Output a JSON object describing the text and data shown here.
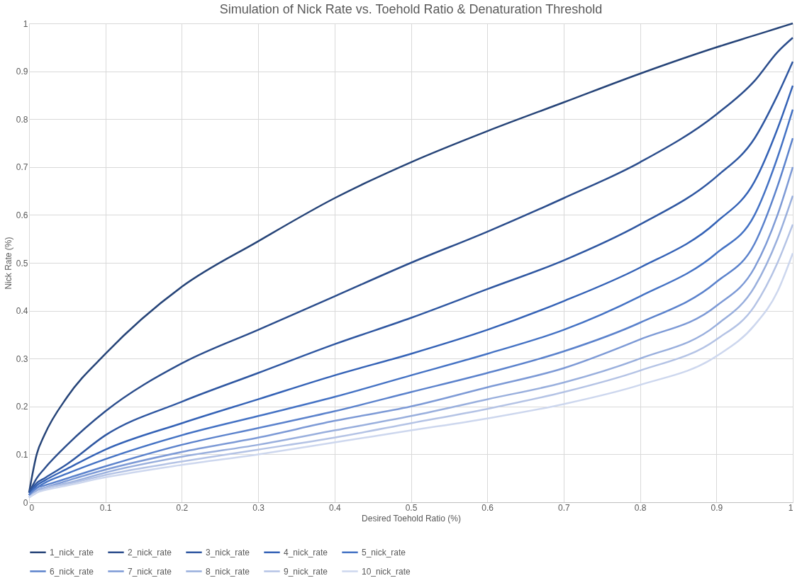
{
  "chart_data": {
    "type": "line",
    "title": "Simulation of Nick Rate vs. Toehold Ratio & Denaturation Threshold",
    "xlabel": "Desired Toehold Ratio (%)",
    "ylabel": "Nick Rate (%)",
    "x": [
      0,
      0.01,
      0.02,
      0.05,
      0.1,
      0.2,
      0.3,
      0.4,
      0.5,
      0.6,
      0.7,
      0.8,
      0.9,
      0.95,
      0.98,
      1
    ],
    "series": [
      {
        "name": "1_nick_rate",
        "color": "#264478",
        "values": [
          0.02,
          0.1,
          0.14,
          0.22,
          0.31,
          0.45,
          0.545,
          0.635,
          0.71,
          0.775,
          0.835,
          0.895,
          0.95,
          0.975,
          0.99,
          1
        ]
      },
      {
        "name": "2_nick_rate",
        "color": "#2b4d8c",
        "values": [
          0.02,
          0.05,
          0.07,
          0.12,
          0.19,
          0.29,
          0.36,
          0.43,
          0.5,
          0.565,
          0.635,
          0.71,
          0.81,
          0.88,
          0.94,
          0.97
        ]
      },
      {
        "name": "3_nick_rate",
        "color": "#2f57a1",
        "values": [
          0.02,
          0.04,
          0.05,
          0.08,
          0.14,
          0.21,
          0.27,
          0.33,
          0.385,
          0.445,
          0.505,
          0.58,
          0.68,
          0.76,
          0.85,
          0.92
        ]
      },
      {
        "name": "4_nick_rate",
        "color": "#3462b6",
        "values": [
          0.015,
          0.035,
          0.045,
          0.07,
          0.11,
          0.165,
          0.215,
          0.265,
          0.31,
          0.36,
          0.42,
          0.49,
          0.585,
          0.67,
          0.78,
          0.87
        ]
      },
      {
        "name": "5_nick_rate",
        "color": "#4472c4",
        "values": [
          0.015,
          0.03,
          0.04,
          0.06,
          0.09,
          0.14,
          0.18,
          0.22,
          0.265,
          0.31,
          0.36,
          0.43,
          0.52,
          0.6,
          0.72,
          0.82
        ]
      },
      {
        "name": "6_nick_rate",
        "color": "#5b82cc",
        "values": [
          0.015,
          0.03,
          0.035,
          0.05,
          0.075,
          0.12,
          0.155,
          0.19,
          0.23,
          0.27,
          0.315,
          0.375,
          0.46,
          0.54,
          0.66,
          0.76
        ]
      },
      {
        "name": "7_nick_rate",
        "color": "#7d9ad6",
        "values": [
          0.01,
          0.025,
          0.03,
          0.045,
          0.068,
          0.105,
          0.135,
          0.17,
          0.2,
          0.24,
          0.28,
          0.34,
          0.41,
          0.49,
          0.6,
          0.7
        ]
      },
      {
        "name": "8_nick_rate",
        "color": "#99afdd",
        "values": [
          0.01,
          0.025,
          0.03,
          0.04,
          0.062,
          0.095,
          0.12,
          0.15,
          0.18,
          0.215,
          0.25,
          0.3,
          0.37,
          0.45,
          0.55,
          0.64
        ]
      },
      {
        "name": "9_nick_rate",
        "color": "#b4c3e5",
        "values": [
          0.01,
          0.02,
          0.028,
          0.038,
          0.057,
          0.085,
          0.11,
          0.135,
          0.165,
          0.195,
          0.23,
          0.275,
          0.34,
          0.41,
          0.5,
          0.58
        ]
      },
      {
        "name": "10_nick_rate",
        "color": "#cdd7ee",
        "values": [
          0.01,
          0.02,
          0.025,
          0.035,
          0.052,
          0.078,
          0.1,
          0.125,
          0.15,
          0.175,
          0.205,
          0.245,
          0.305,
          0.37,
          0.44,
          0.52
        ]
      }
    ],
    "xlim": [
      0,
      1
    ],
    "xticks": [
      0,
      0.1,
      0.2,
      0.3,
      0.4,
      0.5,
      0.6,
      0.7,
      0.8,
      0.9,
      1
    ],
    "ylim": [
      0,
      1
    ],
    "yticks": [
      0,
      0.1,
      0.2,
      0.3,
      0.4,
      0.5,
      0.6,
      0.7,
      0.8,
      0.9,
      1
    ],
    "grid": true,
    "legend": "bottom",
    "marker": "none",
    "line_style": "solid"
  }
}
